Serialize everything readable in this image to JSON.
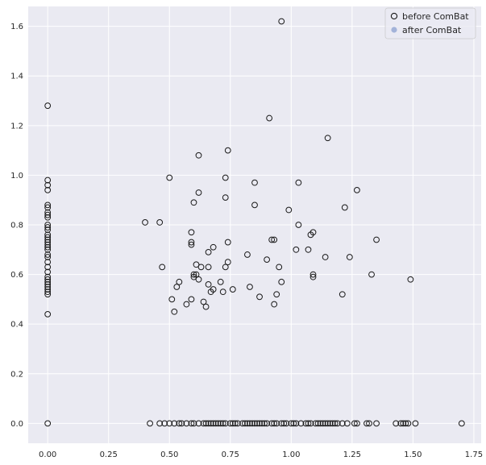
{
  "chart_data": {
    "type": "scatter",
    "title": "",
    "xlabel": "",
    "ylabel": "",
    "xlim": [
      -0.08,
      1.78
    ],
    "ylim": [
      -0.08,
      1.68
    ],
    "x_ticks": [
      0.0,
      0.25,
      0.5,
      0.75,
      1.0,
      1.25,
      1.5,
      1.75
    ],
    "x_tick_labels": [
      "0.00",
      "0.25",
      "0.50",
      "0.75",
      "1.00",
      "1.25",
      "1.50",
      "1.75"
    ],
    "y_ticks": [
      0.0,
      0.2,
      0.4,
      0.6,
      0.8,
      1.0,
      1.2,
      1.4,
      1.6
    ],
    "y_tick_labels": [
      "0.0",
      "0.2",
      "0.4",
      "0.6",
      "0.8",
      "1.0",
      "1.2",
      "1.4",
      "1.6"
    ],
    "grid": true,
    "legend_position": "top-right",
    "colors": {
      "background": "#eaeaf2",
      "grid": "#ffffff",
      "before_edge": "#1a1a1a",
      "after_fill": "#a3b3d9"
    },
    "series": [
      {
        "name": "before ComBat",
        "marker": "hollow-circle",
        "points": [
          [
            0,
            1.28
          ],
          [
            0,
            0.98
          ],
          [
            0,
            0.96
          ],
          [
            0,
            0.94
          ],
          [
            0,
            0.88
          ],
          [
            0,
            0.87
          ],
          [
            0,
            0.85
          ],
          [
            0,
            0.84
          ],
          [
            0,
            0.83
          ],
          [
            0,
            0.8
          ],
          [
            0,
            0.79
          ],
          [
            0,
            0.78
          ],
          [
            0,
            0.76
          ],
          [
            0,
            0.75
          ],
          [
            0,
            0.74
          ],
          [
            0,
            0.73
          ],
          [
            0,
            0.72
          ],
          [
            0,
            0.71
          ],
          [
            0,
            0.7
          ],
          [
            0,
            0.68
          ],
          [
            0,
            0.67
          ],
          [
            0,
            0.65
          ],
          [
            0,
            0.63
          ],
          [
            0,
            0.61
          ],
          [
            0,
            0.59
          ],
          [
            0,
            0.58
          ],
          [
            0,
            0.57
          ],
          [
            0,
            0.56
          ],
          [
            0,
            0.55
          ],
          [
            0,
            0.54
          ],
          [
            0,
            0.53
          ],
          [
            0,
            0.52
          ],
          [
            0,
            0.44
          ],
          [
            0,
            0
          ],
          [
            0.96,
            1.62
          ],
          [
            0.91,
            1.23
          ],
          [
            1.15,
            1.15
          ],
          [
            0.74,
            1.1
          ],
          [
            0.62,
            1.08
          ],
          [
            0.5,
            0.99
          ],
          [
            0.73,
            0.99
          ],
          [
            1.03,
            0.97
          ],
          [
            0.85,
            0.97
          ],
          [
            1.27,
            0.94
          ],
          [
            0.62,
            0.93
          ],
          [
            0.73,
            0.91
          ],
          [
            0.6,
            0.89
          ],
          [
            0.85,
            0.88
          ],
          [
            1.22,
            0.87
          ],
          [
            0.99,
            0.86
          ],
          [
            0.4,
            0.81
          ],
          [
            0.46,
            0.81
          ],
          [
            1.03,
            0.8
          ],
          [
            1.09,
            0.77
          ],
          [
            0.59,
            0.77
          ],
          [
            1.08,
            0.76
          ],
          [
            0.92,
            0.74
          ],
          [
            0.93,
            0.74
          ],
          [
            1.35,
            0.74
          ],
          [
            0.74,
            0.73
          ],
          [
            0.59,
            0.73
          ],
          [
            0.59,
            0.72
          ],
          [
            0.68,
            0.71
          ],
          [
            1.02,
            0.7
          ],
          [
            1.07,
            0.7
          ],
          [
            0.66,
            0.69
          ],
          [
            0.82,
            0.68
          ],
          [
            1.14,
            0.67
          ],
          [
            1.24,
            0.67
          ],
          [
            0.9,
            0.66
          ],
          [
            0.74,
            0.65
          ],
          [
            0.61,
            0.64
          ],
          [
            0.63,
            0.63
          ],
          [
            0.47,
            0.63
          ],
          [
            0.66,
            0.63
          ],
          [
            0.73,
            0.63
          ],
          [
            0.95,
            0.63
          ],
          [
            0.61,
            0.6
          ],
          [
            0.6,
            0.6
          ],
          [
            1.33,
            0.6
          ],
          [
            1.09,
            0.6
          ],
          [
            0.6,
            0.59
          ],
          [
            1.09,
            0.59
          ],
          [
            1.49,
            0.58
          ],
          [
            0.62,
            0.58
          ],
          [
            0.96,
            0.57
          ],
          [
            0.54,
            0.57
          ],
          [
            0.71,
            0.57
          ],
          [
            0.66,
            0.56
          ],
          [
            0.53,
            0.55
          ],
          [
            0.83,
            0.55
          ],
          [
            0.76,
            0.54
          ],
          [
            0.67,
            0.53
          ],
          [
            0.68,
            0.54
          ],
          [
            0.72,
            0.53
          ],
          [
            0.94,
            0.52
          ],
          [
            0.87,
            0.51
          ],
          [
            1.21,
            0.52
          ],
          [
            0.51,
            0.5
          ],
          [
            0.59,
            0.5
          ],
          [
            0.64,
            0.49
          ],
          [
            0.57,
            0.48
          ],
          [
            0.93,
            0.48
          ],
          [
            0.65,
            0.47
          ],
          [
            0.52,
            0.45
          ],
          [
            0.42,
            0
          ],
          [
            0.46,
            0
          ],
          [
            0.48,
            0
          ],
          [
            0.5,
            0
          ],
          [
            0.52,
            0
          ],
          [
            0.54,
            0
          ],
          [
            0.55,
            0
          ],
          [
            0.57,
            0
          ],
          [
            0.59,
            0
          ],
          [
            0.6,
            0
          ],
          [
            0.62,
            0
          ],
          [
            0.64,
            0
          ],
          [
            0.65,
            0
          ],
          [
            0.66,
            0
          ],
          [
            0.67,
            0
          ],
          [
            0.68,
            0
          ],
          [
            0.69,
            0
          ],
          [
            0.7,
            0
          ],
          [
            0.71,
            0
          ],
          [
            0.72,
            0
          ],
          [
            0.73,
            0
          ],
          [
            0.75,
            0
          ],
          [
            0.76,
            0
          ],
          [
            0.77,
            0
          ],
          [
            0.78,
            0
          ],
          [
            0.8,
            0
          ],
          [
            0.81,
            0
          ],
          [
            0.82,
            0
          ],
          [
            0.83,
            0
          ],
          [
            0.84,
            0
          ],
          [
            0.85,
            0
          ],
          [
            0.86,
            0
          ],
          [
            0.87,
            0
          ],
          [
            0.88,
            0
          ],
          [
            0.89,
            0
          ],
          [
            0.9,
            0
          ],
          [
            0.92,
            0
          ],
          [
            0.93,
            0
          ],
          [
            0.94,
            0
          ],
          [
            0.96,
            0
          ],
          [
            0.97,
            0
          ],
          [
            0.98,
            0
          ],
          [
            1.0,
            0
          ],
          [
            1.01,
            0
          ],
          [
            1.02,
            0
          ],
          [
            1.04,
            0
          ],
          [
            1.06,
            0
          ],
          [
            1.07,
            0
          ],
          [
            1.08,
            0
          ],
          [
            1.1,
            0
          ],
          [
            1.11,
            0
          ],
          [
            1.12,
            0
          ],
          [
            1.13,
            0
          ],
          [
            1.14,
            0
          ],
          [
            1.15,
            0
          ],
          [
            1.16,
            0
          ],
          [
            1.17,
            0
          ],
          [
            1.18,
            0
          ],
          [
            1.19,
            0
          ],
          [
            1.21,
            0
          ],
          [
            1.23,
            0
          ],
          [
            1.26,
            0
          ],
          [
            1.27,
            0
          ],
          [
            1.31,
            0
          ],
          [
            1.32,
            0
          ],
          [
            1.35,
            0
          ],
          [
            1.43,
            0
          ],
          [
            1.45,
            0
          ],
          [
            1.46,
            0
          ],
          [
            1.47,
            0
          ],
          [
            1.48,
            0
          ],
          [
            1.51,
            0
          ],
          [
            1.7,
            0
          ]
        ]
      },
      {
        "name": "after ComBat",
        "marker": "filled-circle",
        "points": []
      }
    ]
  }
}
